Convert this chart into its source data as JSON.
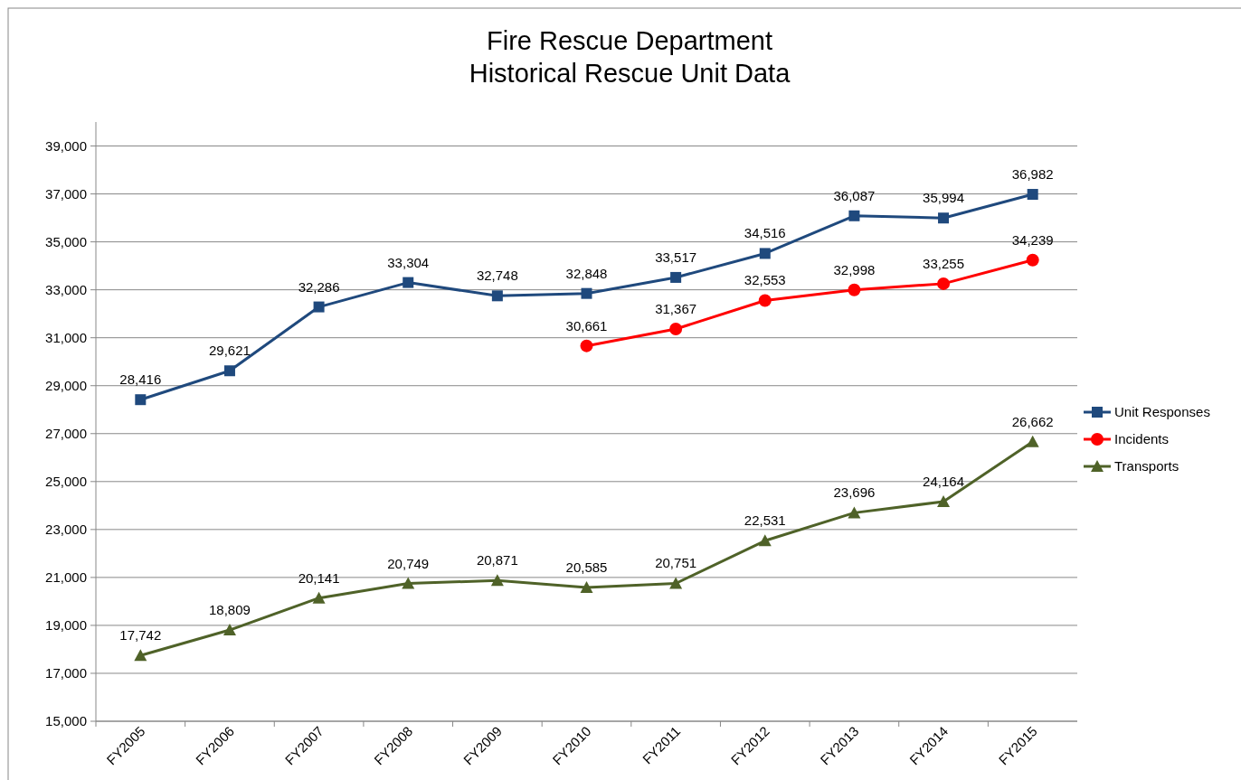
{
  "chart_data": {
    "type": "line",
    "title": "Fire Rescue Department\nHistorical Rescue Unit Data",
    "categories": [
      "FY2005",
      "FY2006",
      "FY2007",
      "FY2008",
      "FY2009",
      "FY2010",
      "FY2011",
      "FY2012",
      "FY2013",
      "FY2014",
      "FY2015"
    ],
    "series": [
      {
        "name": "Unit Responses",
        "color": "#1f497d",
        "marker": "square",
        "values": [
          28416,
          29621,
          32286,
          33304,
          32748,
          32848,
          33517,
          34516,
          36087,
          35994,
          36982
        ],
        "value_labels": [
          "28,416",
          "29,621",
          "32,286",
          "33,304",
          "32,748",
          "32,848",
          "33,517",
          "34,516",
          "36,087",
          "35,994",
          "36,982"
        ]
      },
      {
        "name": "Incidents",
        "color": "#ff0000",
        "marker": "circle",
        "values": [
          null,
          null,
          null,
          null,
          null,
          30661,
          31367,
          32553,
          32998,
          33255,
          34239
        ],
        "value_labels": [
          null,
          null,
          null,
          null,
          null,
          "30,661",
          "31,367",
          "32,553",
          "32,998",
          "33,255",
          "34,239"
        ]
      },
      {
        "name": "Transports",
        "color": "#4f6228",
        "marker": "triangle",
        "values": [
          17742,
          18809,
          20141,
          20749,
          20871,
          20585,
          20751,
          22531,
          23696,
          24164,
          26662
        ],
        "value_labels": [
          "17,742",
          "18,809",
          "20,141",
          "20,749",
          "20,871",
          "20,585",
          "20,751",
          "22,531",
          "23,696",
          "24,164",
          "26,662"
        ]
      }
    ],
    "ylim": [
      15000,
      40000
    ],
    "yticks": [
      {
        "value": 15000,
        "label": "15,000"
      },
      {
        "value": 17000,
        "label": "17,000"
      },
      {
        "value": 19000,
        "label": "19,000"
      },
      {
        "value": 21000,
        "label": "21,000"
      },
      {
        "value": 23000,
        "label": "23,000"
      },
      {
        "value": 25000,
        "label": "25,000"
      },
      {
        "value": 27000,
        "label": "27,000"
      },
      {
        "value": 29000,
        "label": "29,000"
      },
      {
        "value": 31000,
        "label": "31,000"
      },
      {
        "value": 33000,
        "label": "33,000"
      },
      {
        "value": 35000,
        "label": "35,000"
      },
      {
        "value": 37000,
        "label": "37,000"
      },
      {
        "value": 39000,
        "label": "39,000"
      }
    ],
    "grid": "y",
    "legend": "right",
    "line_style": "solid"
  }
}
